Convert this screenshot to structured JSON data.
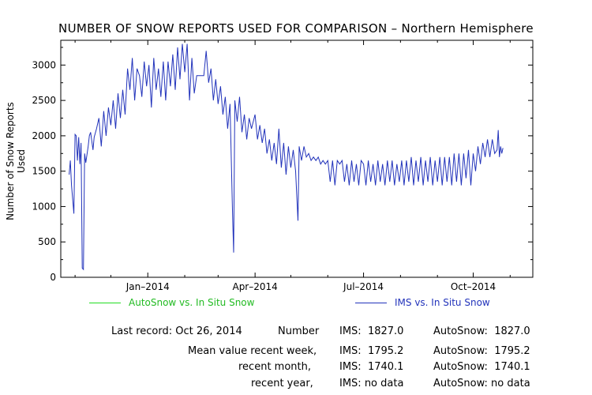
{
  "chart_data": {
    "type": "line",
    "title": "NUMBER OF SNOW REPORTS USED FOR COMPARISON – Northern Hemisphere",
    "ylabel": "Number of Snow Reports Used",
    "xlabel": "",
    "ylim": [
      0,
      3350
    ],
    "yticks": [
      0,
      500,
      1000,
      1500,
      2000,
      2500,
      3000
    ],
    "xlim": [
      "2013-10-20",
      "2014-11-20"
    ],
    "xticks": [
      {
        "date": "2014-01-01",
        "label": "Jan–2014"
      },
      {
        "date": "2014-04-01",
        "label": "Apr–2014"
      },
      {
        "date": "2014-07-01",
        "label": "Jul–2014"
      },
      {
        "date": "2014-10-01",
        "label": "Oct–2014"
      }
    ],
    "series": [
      {
        "name": "AutoSnow vs. In Situ Snow",
        "color": "#22dd22",
        "points": []
      },
      {
        "name": "IMS vs. In Situ Snow",
        "color": "#2233bb",
        "points": [
          [
            "2013-10-27",
            1450
          ],
          [
            "2013-10-28",
            1650
          ],
          [
            "2013-10-29",
            1300
          ],
          [
            "2013-10-31",
            900
          ],
          [
            "2013-11-01",
            2020
          ],
          [
            "2013-11-02",
            2000
          ],
          [
            "2013-11-03",
            1650
          ],
          [
            "2013-11-04",
            1980
          ],
          [
            "2013-11-05",
            1600
          ],
          [
            "2013-11-06",
            1900
          ],
          [
            "2013-11-07",
            130
          ],
          [
            "2013-11-08",
            110
          ],
          [
            "2013-11-09",
            1750
          ],
          [
            "2013-11-10",
            1620
          ],
          [
            "2013-11-12",
            1850
          ],
          [
            "2013-11-13",
            2000
          ],
          [
            "2013-11-14",
            2050
          ],
          [
            "2013-11-16",
            1800
          ],
          [
            "2013-11-17",
            1980
          ],
          [
            "2013-11-19",
            2100
          ],
          [
            "2013-11-21",
            2250
          ],
          [
            "2013-11-23",
            1850
          ],
          [
            "2013-11-25",
            2350
          ],
          [
            "2013-11-27",
            2000
          ],
          [
            "2013-11-29",
            2400
          ],
          [
            "2013-12-01",
            2150
          ],
          [
            "2013-12-03",
            2500
          ],
          [
            "2013-12-05",
            2100
          ],
          [
            "2013-12-07",
            2600
          ],
          [
            "2013-12-09",
            2250
          ],
          [
            "2013-12-11",
            2650
          ],
          [
            "2013-12-13",
            2300
          ],
          [
            "2013-12-15",
            2950
          ],
          [
            "2013-12-17",
            2650
          ],
          [
            "2013-12-19",
            3100
          ],
          [
            "2013-12-21",
            2500
          ],
          [
            "2013-12-23",
            2950
          ],
          [
            "2013-12-25",
            2850
          ],
          [
            "2013-12-27",
            2550
          ],
          [
            "2013-12-29",
            3050
          ],
          [
            "2013-12-31",
            2700
          ],
          [
            "2014-01-02",
            3000
          ],
          [
            "2014-01-04",
            2400
          ],
          [
            "2014-01-06",
            3100
          ],
          [
            "2014-01-08",
            2650
          ],
          [
            "2014-01-10",
            2950
          ],
          [
            "2014-01-12",
            2550
          ],
          [
            "2014-01-14",
            3050
          ],
          [
            "2014-01-16",
            2500
          ],
          [
            "2014-01-18",
            3050
          ],
          [
            "2014-01-20",
            2700
          ],
          [
            "2014-01-22",
            3150
          ],
          [
            "2014-01-24",
            2650
          ],
          [
            "2014-01-26",
            3250
          ],
          [
            "2014-01-28",
            2800
          ],
          [
            "2014-01-30",
            3300
          ],
          [
            "2014-02-01",
            2900
          ],
          [
            "2014-02-03",
            3300
          ],
          [
            "2014-02-05",
            2500
          ],
          [
            "2014-02-07",
            3100
          ],
          [
            "2014-02-09",
            2600
          ],
          [
            "2014-02-11",
            2850
          ],
          [
            "2014-02-13",
            2850
          ],
          [
            "2014-02-15",
            2850
          ],
          [
            "2014-02-17",
            2850
          ],
          [
            "2014-02-19",
            3200
          ],
          [
            "2014-02-21",
            2750
          ],
          [
            "2014-02-23",
            2950
          ],
          [
            "2014-02-25",
            2500
          ],
          [
            "2014-02-27",
            2800
          ],
          [
            "2014-03-01",
            2450
          ],
          [
            "2014-03-03",
            2700
          ],
          [
            "2014-03-05",
            2300
          ],
          [
            "2014-03-07",
            2550
          ],
          [
            "2014-03-09",
            2100
          ],
          [
            "2014-03-11",
            2450
          ],
          [
            "2014-03-13",
            950
          ],
          [
            "2014-03-14",
            350
          ],
          [
            "2014-03-15",
            2500
          ],
          [
            "2014-03-17",
            2200
          ],
          [
            "2014-03-19",
            2550
          ],
          [
            "2014-03-21",
            2050
          ],
          [
            "2014-03-23",
            2300
          ],
          [
            "2014-03-25",
            1950
          ],
          [
            "2014-03-27",
            2250
          ],
          [
            "2014-03-29",
            2100
          ],
          [
            "2014-04-01",
            2300
          ],
          [
            "2014-04-03",
            1950
          ],
          [
            "2014-04-05",
            2150
          ],
          [
            "2014-04-07",
            1900
          ],
          [
            "2014-04-09",
            2100
          ],
          [
            "2014-04-11",
            1750
          ],
          [
            "2014-04-13",
            1950
          ],
          [
            "2014-04-15",
            1650
          ],
          [
            "2014-04-17",
            1900
          ],
          [
            "2014-04-19",
            1600
          ],
          [
            "2014-04-21",
            2100
          ],
          [
            "2014-04-23",
            1550
          ],
          [
            "2014-04-25",
            1900
          ],
          [
            "2014-04-27",
            1450
          ],
          [
            "2014-04-29",
            1850
          ],
          [
            "2014-05-01",
            1550
          ],
          [
            "2014-05-03",
            1800
          ],
          [
            "2014-05-05",
            1500
          ],
          [
            "2014-05-07",
            800
          ],
          [
            "2014-05-08",
            1850
          ],
          [
            "2014-05-10",
            1650
          ],
          [
            "2014-05-12",
            1850
          ],
          [
            "2014-05-14",
            1700
          ],
          [
            "2014-05-16",
            1750
          ],
          [
            "2014-05-18",
            1650
          ],
          [
            "2014-05-20",
            1700
          ],
          [
            "2014-05-22",
            1650
          ],
          [
            "2014-05-24",
            1700
          ],
          [
            "2014-05-26",
            1600
          ],
          [
            "2014-05-28",
            1650
          ],
          [
            "2014-05-30",
            1600
          ],
          [
            "2014-06-01",
            1650
          ],
          [
            "2014-06-03",
            1350
          ],
          [
            "2014-06-05",
            1650
          ],
          [
            "2014-06-07",
            1300
          ],
          [
            "2014-06-09",
            1650
          ],
          [
            "2014-06-11",
            1600
          ],
          [
            "2014-06-13",
            1650
          ],
          [
            "2014-06-15",
            1350
          ],
          [
            "2014-06-17",
            1600
          ],
          [
            "2014-06-19",
            1300
          ],
          [
            "2014-06-21",
            1650
          ],
          [
            "2014-06-23",
            1350
          ],
          [
            "2014-06-25",
            1600
          ],
          [
            "2014-06-27",
            1300
          ],
          [
            "2014-06-29",
            1650
          ],
          [
            "2014-07-01",
            1600
          ],
          [
            "2014-07-03",
            1300
          ],
          [
            "2014-07-05",
            1650
          ],
          [
            "2014-07-07",
            1350
          ],
          [
            "2014-07-09",
            1600
          ],
          [
            "2014-07-11",
            1300
          ],
          [
            "2014-07-13",
            1650
          ],
          [
            "2014-07-15",
            1350
          ],
          [
            "2014-07-17",
            1600
          ],
          [
            "2014-07-19",
            1300
          ],
          [
            "2014-07-21",
            1650
          ],
          [
            "2014-07-23",
            1350
          ],
          [
            "2014-07-25",
            1650
          ],
          [
            "2014-07-27",
            1300
          ],
          [
            "2014-07-29",
            1600
          ],
          [
            "2014-07-31",
            1350
          ],
          [
            "2014-08-02",
            1650
          ],
          [
            "2014-08-04",
            1300
          ],
          [
            "2014-08-06",
            1650
          ],
          [
            "2014-08-08",
            1350
          ],
          [
            "2014-08-10",
            1700
          ],
          [
            "2014-08-12",
            1300
          ],
          [
            "2014-08-14",
            1650
          ],
          [
            "2014-08-16",
            1350
          ],
          [
            "2014-08-18",
            1700
          ],
          [
            "2014-08-20",
            1300
          ],
          [
            "2014-08-22",
            1650
          ],
          [
            "2014-08-24",
            1350
          ],
          [
            "2014-08-26",
            1700
          ],
          [
            "2014-08-28",
            1300
          ],
          [
            "2014-08-30",
            1650
          ],
          [
            "2014-09-01",
            1350
          ],
          [
            "2014-09-03",
            1700
          ],
          [
            "2014-09-05",
            1300
          ],
          [
            "2014-09-07",
            1700
          ],
          [
            "2014-09-09",
            1350
          ],
          [
            "2014-09-11",
            1700
          ],
          [
            "2014-09-13",
            1300
          ],
          [
            "2014-09-15",
            1750
          ],
          [
            "2014-09-17",
            1350
          ],
          [
            "2014-09-19",
            1750
          ],
          [
            "2014-09-21",
            1300
          ],
          [
            "2014-09-23",
            1750
          ],
          [
            "2014-09-25",
            1400
          ],
          [
            "2014-09-27",
            1800
          ],
          [
            "2014-09-29",
            1300
          ],
          [
            "2014-10-01",
            1750
          ],
          [
            "2014-10-03",
            1500
          ],
          [
            "2014-10-05",
            1850
          ],
          [
            "2014-10-07",
            1600
          ],
          [
            "2014-10-09",
            1900
          ],
          [
            "2014-10-11",
            1700
          ],
          [
            "2014-10-13",
            1950
          ],
          [
            "2014-10-15",
            1700
          ],
          [
            "2014-10-17",
            1950
          ],
          [
            "2014-10-19",
            1750
          ],
          [
            "2014-10-21",
            1800
          ],
          [
            "2014-10-22",
            2080
          ],
          [
            "2014-10-23",
            1700
          ],
          [
            "2014-10-24",
            1850
          ],
          [
            "2014-10-25",
            1750
          ],
          [
            "2014-10-26",
            1827
          ]
        ]
      }
    ]
  },
  "colors": {
    "axes": "#000000",
    "autosnow": "#22dd22",
    "ims": "#2233bb"
  },
  "info": {
    "last_record": "Last record: Oct 26, 2014",
    "number_label": "Number",
    "number_ims": "IMS:  1827.0",
    "number_auto": "AutoSnow:  1827.0",
    "week_label": "Mean value recent week,",
    "week_ims": "IMS:  1795.2",
    "week_auto": "AutoSnow:  1795.2",
    "month_label": "recent month,",
    "month_ims": "IMS:  1740.1",
    "month_auto": "AutoSnow:  1740.1",
    "year_label": "recent year,",
    "year_ims": "IMS: no data",
    "year_auto": "AutoSnow: no data"
  }
}
